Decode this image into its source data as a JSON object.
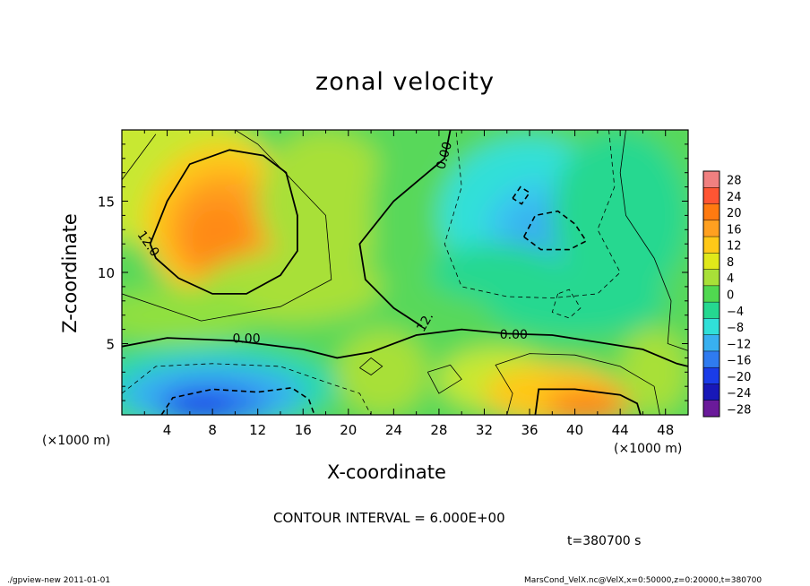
{
  "chart_data": {
    "type": "heatmap",
    "title": "zonal velocity",
    "xlabel": "X-coordinate",
    "ylabel": "Z-coordinate",
    "x_unit_label": "(×1000 m)",
    "y_unit_label": "(×1000 m)",
    "xlim": [
      0,
      50
    ],
    "ylim": [
      0,
      20
    ],
    "x_ticks": [
      4,
      8,
      12,
      16,
      20,
      24,
      28,
      32,
      36,
      40,
      44,
      48
    ],
    "y_ticks": [
      5,
      10,
      15
    ],
    "colorbar": {
      "levels": [
        28,
        24,
        20,
        16,
        12,
        8,
        4,
        0,
        -4,
        -8,
        -12,
        -16,
        -20,
        -24,
        -28
      ],
      "colors": [
        "#f08080",
        "#ff5533",
        "#ff7a10",
        "#ffa020",
        "#ffc818",
        "#e0e81a",
        "#a8e038",
        "#50d850",
        "#25d890",
        "#30e0d8",
        "#38b0f0",
        "#2f7bf0",
        "#1a3ce8",
        "#1818b8",
        "#6a1a9a"
      ]
    },
    "contour_labels": [
      {
        "text": "0.00",
        "x": 28.5,
        "z": 18.2
      },
      {
        "text": "12.0",
        "x": 2.3,
        "z": 12.0
      },
      {
        "text": "0.00",
        "x": 11.0,
        "z": 5.3
      },
      {
        "text": "0.00",
        "x": 34.6,
        "z": 5.6
      },
      {
        "text": "12.",
        "x": 26.8,
        "z": 6.5
      }
    ],
    "features": [
      {
        "name": "positive maximum",
        "x": 8,
        "z": 13,
        "value": 16
      },
      {
        "name": "negative minimum",
        "x": 36,
        "z": 13,
        "value": -10
      },
      {
        "name": "surface negative jet",
        "x": 8,
        "z": 1,
        "value": -22
      },
      {
        "name": "surface positive jet",
        "x": 41,
        "z": 1,
        "value": 16
      }
    ],
    "contour_interval": 6.0,
    "contour_interval_text": "CONTOUR INTERVAL = 6.000E+00",
    "time_text": "t=380700 s"
  },
  "footer": {
    "left": "./gpview-new  2011-01-01",
    "right": "MarsCond_VelX.nc@VelX,x=0:50000,z=0:20000,t=380700"
  }
}
